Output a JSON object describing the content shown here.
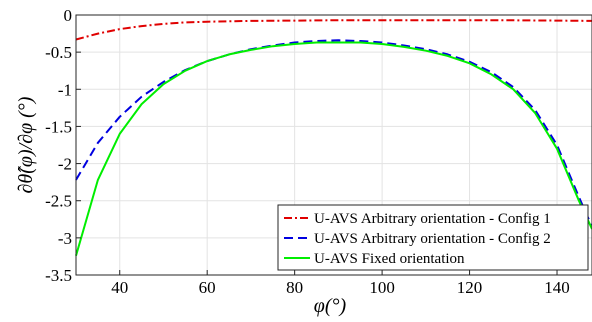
{
  "chart_data": {
    "type": "line",
    "xlabel": "φ(°)",
    "ylabel": "∂θ̂(φ)/∂φ (°)",
    "xlim": [
      30,
      148
    ],
    "ylim": [
      -3.5,
      0
    ],
    "x_ticks": [
      40,
      60,
      80,
      100,
      120,
      140
    ],
    "y_ticks": [
      0,
      -0.5,
      -1,
      -1.5,
      -2,
      -2.5,
      -3,
      -3.5
    ],
    "x_tick_labels": [
      "40",
      "60",
      "80",
      "100",
      "120",
      "140"
    ],
    "y_tick_labels": [
      "0",
      "-0.5",
      "-1",
      "-1.5",
      "-2",
      "-2.5",
      "-3",
      "-3.5"
    ],
    "grid": true,
    "legend_position": "bottom-right",
    "series": [
      {
        "name": "U-AVS Arbitrary orientation - Config 1",
        "color": "#e00000",
        "style": "dash-dot",
        "x": [
          30,
          35,
          40,
          45,
          50,
          55,
          60,
          70,
          80,
          90,
          100,
          110,
          120,
          130,
          140,
          148
        ],
        "y": [
          -0.33,
          -0.25,
          -0.19,
          -0.15,
          -0.12,
          -0.1,
          -0.09,
          -0.08,
          -0.075,
          -0.07,
          -0.07,
          -0.07,
          -0.07,
          -0.072,
          -0.075,
          -0.08
        ]
      },
      {
        "name": "U-AVS Arbitrary orientation - Config 2",
        "color": "#0000e0",
        "style": "dashed",
        "x": [
          30,
          35,
          40,
          45,
          50,
          55,
          60,
          65,
          70,
          75,
          80,
          85,
          90,
          95,
          100,
          105,
          110,
          115,
          120,
          125,
          130,
          135,
          140,
          145,
          148
        ],
        "y": [
          -2.22,
          -1.72,
          -1.37,
          -1.1,
          -0.9,
          -0.74,
          -0.62,
          -0.53,
          -0.46,
          -0.41,
          -0.37,
          -0.35,
          -0.34,
          -0.35,
          -0.37,
          -0.41,
          -0.46,
          -0.53,
          -0.63,
          -0.77,
          -0.97,
          -1.28,
          -1.75,
          -2.45,
          -2.85
        ]
      },
      {
        "name": "U-AVS Fixed orientation",
        "color": "#00ee00",
        "style": "solid",
        "x": [
          30,
          35,
          40,
          45,
          50,
          55,
          60,
          65,
          70,
          75,
          80,
          85,
          90,
          95,
          100,
          105,
          110,
          115,
          120,
          125,
          130,
          135,
          140,
          145,
          148
        ],
        "y": [
          -3.24,
          -2.22,
          -1.6,
          -1.2,
          -0.93,
          -0.75,
          -0.62,
          -0.53,
          -0.47,
          -0.42,
          -0.39,
          -0.37,
          -0.37,
          -0.37,
          -0.39,
          -0.43,
          -0.48,
          -0.55,
          -0.65,
          -0.8,
          -1.0,
          -1.32,
          -1.8,
          -2.5,
          -2.88
        ]
      }
    ]
  }
}
